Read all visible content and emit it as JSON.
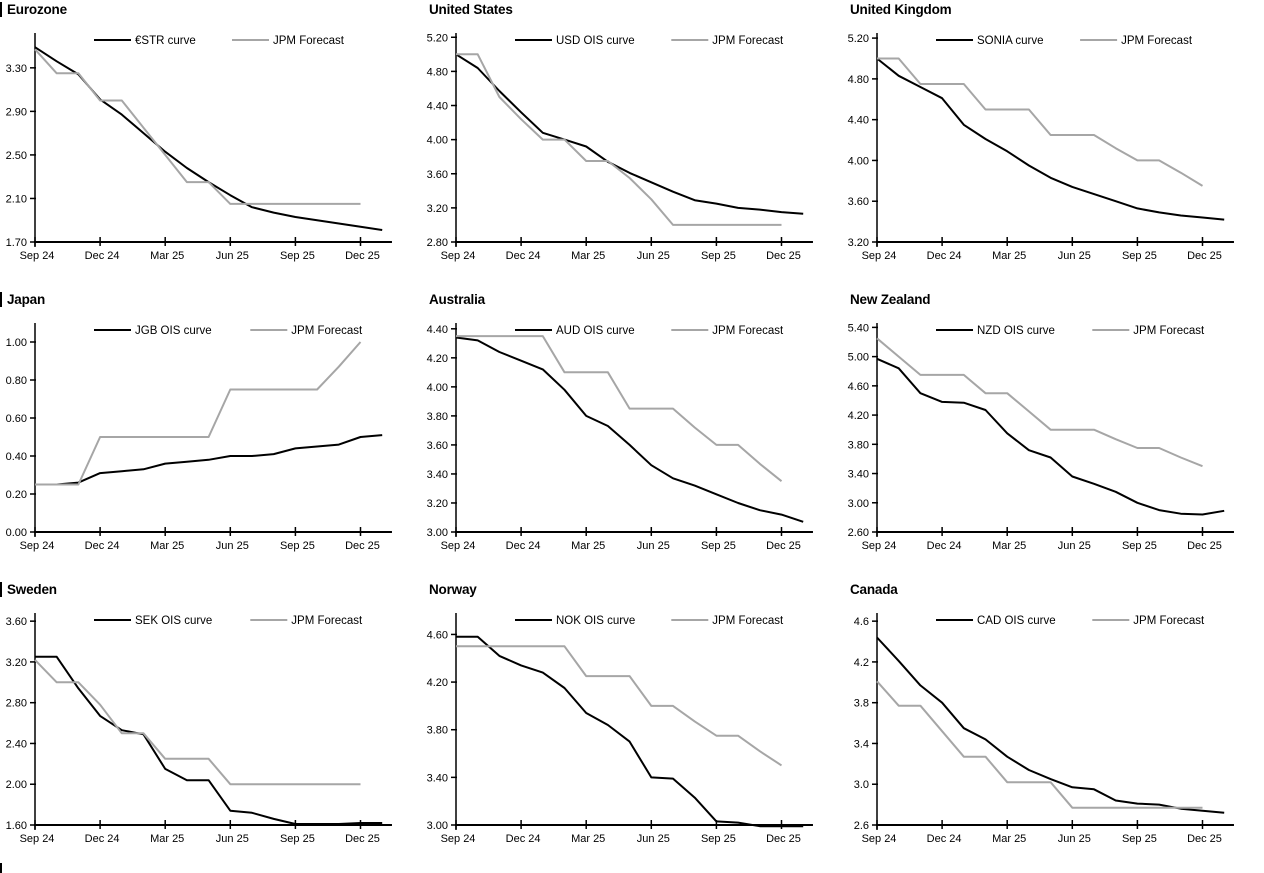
{
  "page": {
    "background": "#ffffff"
  },
  "colors": {
    "series": "#000000",
    "forecast": "#a6a6a6",
    "axis": "#000000"
  },
  "x_tick_labels": [
    "Sep 24",
    "Dec 24",
    "Mar 25",
    "Jun 25",
    "Sep 25",
    "Dec 25"
  ],
  "chart_data": [
    {
      "type": "line",
      "title": "Eurozone",
      "title_bar": true,
      "x_tick_labels": [
        "Sep 24",
        "Dec 24",
        "Mar 25",
        "Jun 25",
        "Sep 25",
        "Dec 25"
      ],
      "x_months_span": 16,
      "ylim": [
        1.7,
        3.62
      ],
      "yticks": [
        1.7,
        2.1,
        2.5,
        2.9,
        3.3
      ],
      "tick_decimals": 2,
      "legend_position": "top",
      "grid": false,
      "series": [
        {
          "name": "€STR curve",
          "color": "#000000",
          "values": [
            3.49,
            3.36,
            3.24,
            3.01,
            2.87,
            2.7,
            2.53,
            2.38,
            2.25,
            2.13,
            2.02,
            1.97,
            1.93,
            1.9,
            1.87,
            1.84,
            1.81
          ]
        },
        {
          "name": "JPM Forecast",
          "color": "#a6a6a6",
          "values": [
            3.47,
            3.25,
            3.25,
            3.0,
            3.0,
            2.75,
            2.5,
            2.25,
            2.25,
            2.05,
            2.05,
            2.05,
            2.05,
            2.05,
            2.05,
            2.05
          ]
        }
      ]
    },
    {
      "type": "line",
      "title": "United States",
      "title_bar": false,
      "x_tick_labels": [
        "Sep 24",
        "Dec 24",
        "Mar 25",
        "Jun 25",
        "Sep 25",
        "Dec 25"
      ],
      "x_months_span": 16,
      "ylim": [
        2.8,
        5.25
      ],
      "yticks": [
        2.8,
        3.2,
        3.6,
        4.0,
        4.4,
        4.8,
        5.2
      ],
      "tick_decimals": 2,
      "legend_position": "top",
      "grid": false,
      "series": [
        {
          "name": "USD OIS curve",
          "color": "#000000",
          "values": [
            5.0,
            4.84,
            4.57,
            4.32,
            4.08,
            4.0,
            3.92,
            3.74,
            3.61,
            3.5,
            3.39,
            3.29,
            3.25,
            3.2,
            3.18,
            3.15,
            3.13
          ]
        },
        {
          "name": "JPM Forecast",
          "color": "#a6a6a6",
          "values": [
            5.0,
            5.0,
            4.5,
            4.24,
            4.0,
            4.0,
            3.75,
            3.75,
            3.55,
            3.3,
            3.0,
            3.0,
            3.0,
            3.0,
            3.0,
            3.0
          ]
        }
      ]
    },
    {
      "type": "line",
      "title": "United Kingdom",
      "title_bar": false,
      "x_tick_labels": [
        "Sep 24",
        "Dec 24",
        "Mar 25",
        "Jun 25",
        "Sep 25",
        "Dec 25"
      ],
      "x_months_span": 16,
      "ylim": [
        3.2,
        5.25
      ],
      "yticks": [
        3.2,
        3.6,
        4.0,
        4.4,
        4.8,
        5.2
      ],
      "tick_decimals": 2,
      "legend_position": "top",
      "grid": false,
      "series": [
        {
          "name": "SONIA curve",
          "color": "#000000",
          "values": [
            5.0,
            4.83,
            4.72,
            4.61,
            4.35,
            4.21,
            4.09,
            3.95,
            3.83,
            3.74,
            3.67,
            3.6,
            3.53,
            3.49,
            3.46,
            3.44,
            3.42
          ]
        },
        {
          "name": "JPM Forecast",
          "color": "#a6a6a6",
          "values": [
            5.0,
            5.0,
            4.75,
            4.75,
            4.75,
            4.5,
            4.5,
            4.5,
            4.25,
            4.25,
            4.25,
            4.12,
            4.0,
            4.0,
            3.88,
            3.75
          ]
        }
      ]
    },
    {
      "type": "line",
      "title": "Japan",
      "title_bar": true,
      "x_tick_labels": [
        "Sep 24",
        "Dec 24",
        "Mar 25",
        "Jun 25",
        "Sep 25",
        "Dec 25"
      ],
      "x_months_span": 16,
      "ylim": [
        0.0,
        1.1
      ],
      "yticks": [
        0.0,
        0.2,
        0.4,
        0.6,
        0.8,
        1.0
      ],
      "tick_decimals": 2,
      "legend_position": "top",
      "grid": false,
      "series": [
        {
          "name": "JGB OIS curve",
          "color": "#000000",
          "values": [
            0.25,
            0.25,
            0.26,
            0.31,
            0.32,
            0.33,
            0.36,
            0.37,
            0.38,
            0.4,
            0.4,
            0.41,
            0.44,
            0.45,
            0.46,
            0.5,
            0.51
          ]
        },
        {
          "name": "JPM Forecast",
          "color": "#a6a6a6",
          "values": [
            0.25,
            0.25,
            0.25,
            0.5,
            0.5,
            0.5,
            0.5,
            0.5,
            0.5,
            0.75,
            0.75,
            0.75,
            0.75,
            0.75,
            0.87,
            1.0
          ]
        }
      ]
    },
    {
      "type": "line",
      "title": "Australia",
      "title_bar": false,
      "x_tick_labels": [
        "Sep 24",
        "Dec 24",
        "Mar 25",
        "Jun 25",
        "Sep 25",
        "Dec 25"
      ],
      "x_months_span": 16,
      "ylim": [
        3.0,
        4.44
      ],
      "yticks": [
        3.0,
        3.2,
        3.4,
        3.6,
        3.8,
        4.0,
        4.2,
        4.4
      ],
      "tick_decimals": 2,
      "legend_position": "top",
      "grid": false,
      "series": [
        {
          "name": "AUD OIS curve",
          "color": "#000000",
          "values": [
            4.34,
            4.32,
            4.24,
            4.18,
            4.12,
            3.98,
            3.8,
            3.73,
            3.6,
            3.46,
            3.37,
            3.32,
            3.26,
            3.2,
            3.15,
            3.12,
            3.07
          ]
        },
        {
          "name": "JPM Forecast",
          "color": "#a6a6a6",
          "values": [
            4.35,
            4.35,
            4.35,
            4.35,
            4.35,
            4.1,
            4.1,
            4.1,
            3.85,
            3.85,
            3.85,
            3.72,
            3.6,
            3.6,
            3.47,
            3.35
          ]
        }
      ]
    },
    {
      "type": "line",
      "title": "New Zealand",
      "title_bar": false,
      "x_tick_labels": [
        "Sep 24",
        "Dec 24",
        "Mar 25",
        "Jun 25",
        "Sep 25",
        "Dec 25"
      ],
      "x_months_span": 16,
      "ylim": [
        2.6,
        5.46
      ],
      "yticks": [
        2.6,
        3.0,
        3.4,
        3.8,
        4.2,
        4.6,
        5.0,
        5.4
      ],
      "tick_decimals": 2,
      "legend_position": "top",
      "grid": false,
      "series": [
        {
          "name": "NZD OIS curve",
          "color": "#000000",
          "values": [
            4.97,
            4.84,
            4.5,
            4.38,
            4.37,
            4.27,
            3.95,
            3.72,
            3.62,
            3.36,
            3.26,
            3.15,
            3.0,
            2.9,
            2.85,
            2.84,
            2.89
          ]
        },
        {
          "name": "JPM Forecast",
          "color": "#a6a6a6",
          "values": [
            5.25,
            5.0,
            4.75,
            4.75,
            4.75,
            4.5,
            4.5,
            4.25,
            4.0,
            4.0,
            4.0,
            3.87,
            3.75,
            3.75,
            3.62,
            3.5
          ]
        }
      ]
    },
    {
      "type": "line",
      "title": "Sweden",
      "title_bar": true,
      "x_tick_labels": [
        "Sep 24",
        "Dec 24",
        "Mar 25",
        "Jun 25",
        "Sep 25",
        "Dec 25"
      ],
      "x_months_span": 16,
      "ylim": [
        1.6,
        3.68
      ],
      "yticks": [
        1.6,
        2.0,
        2.4,
        2.8,
        3.2,
        3.6
      ],
      "tick_decimals": 2,
      "legend_position": "top",
      "grid": false,
      "series": [
        {
          "name": "SEK OIS curve",
          "color": "#000000",
          "values": [
            3.25,
            3.25,
            2.94,
            2.67,
            2.53,
            2.49,
            2.15,
            2.04,
            2.04,
            1.74,
            1.72,
            1.66,
            1.61,
            1.61,
            1.61,
            1.62,
            1.62
          ]
        },
        {
          "name": "JPM Forecast",
          "color": "#a6a6a6",
          "values": [
            3.22,
            3.0,
            3.0,
            2.78,
            2.5,
            2.5,
            2.25,
            2.25,
            2.25,
            2.0,
            2.0,
            2.0,
            2.0,
            2.0,
            2.0,
            2.0
          ]
        }
      ]
    },
    {
      "type": "line",
      "title": "Norway",
      "title_bar": false,
      "x_tick_labels": [
        "Sep 24",
        "Dec 24",
        "Mar 25",
        "Jun 25",
        "Sep 25",
        "Dec 25"
      ],
      "x_months_span": 16,
      "ylim": [
        3.0,
        4.78
      ],
      "yticks": [
        3.0,
        3.4,
        3.8,
        4.2,
        4.6
      ],
      "tick_decimals": 2,
      "legend_position": "top",
      "grid": false,
      "series": [
        {
          "name": "NOK OIS curve",
          "color": "#000000",
          "values": [
            4.58,
            4.58,
            4.42,
            4.34,
            4.28,
            4.15,
            3.94,
            3.84,
            3.7,
            3.4,
            3.39,
            3.23,
            3.03,
            3.02,
            2.99,
            2.99,
            2.99
          ]
        },
        {
          "name": "JPM Forecast",
          "color": "#a6a6a6",
          "values": [
            4.5,
            4.5,
            4.5,
            4.5,
            4.5,
            4.5,
            4.25,
            4.25,
            4.25,
            4.0,
            4.0,
            3.87,
            3.75,
            3.75,
            3.62,
            3.5
          ]
        }
      ]
    },
    {
      "type": "line",
      "title": "Canada",
      "title_bar": false,
      "x_tick_labels": [
        "Sep 24",
        "Dec 24",
        "Mar 25",
        "Jun 25",
        "Sep 25",
        "Dec 25"
      ],
      "x_months_span": 16,
      "ylim": [
        2.6,
        4.68
      ],
      "yticks": [
        2.6,
        3.0,
        3.4,
        3.8,
        4.2,
        4.6
      ],
      "tick_decimals": 1,
      "legend_position": "top",
      "grid": false,
      "series": [
        {
          "name": "CAD OIS curve",
          "color": "#000000",
          "values": [
            4.44,
            4.21,
            3.97,
            3.8,
            3.55,
            3.44,
            3.27,
            3.14,
            3.05,
            2.97,
            2.95,
            2.84,
            2.81,
            2.8,
            2.76,
            2.74,
            2.72
          ]
        },
        {
          "name": "JPM Forecast",
          "color": "#a6a6a6",
          "values": [
            4.01,
            3.77,
            3.77,
            3.52,
            3.27,
            3.27,
            3.02,
            3.02,
            3.02,
            2.77,
            2.77,
            2.77,
            2.77,
            2.77,
            2.77,
            2.77
          ]
        }
      ]
    }
  ]
}
